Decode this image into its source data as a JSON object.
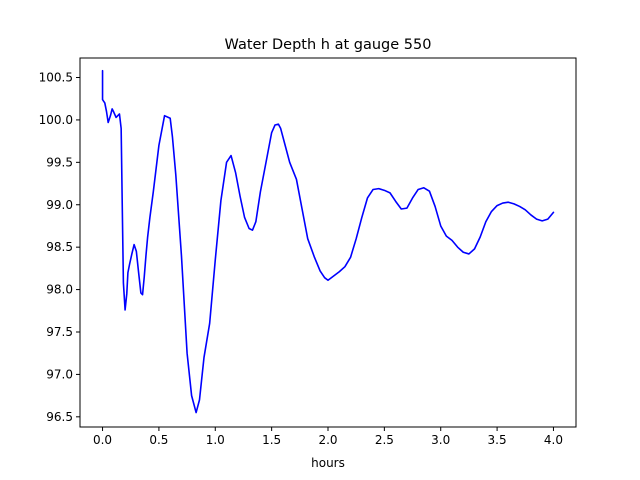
{
  "chart_data": {
    "type": "line",
    "title": "Water Depth h at gauge 550",
    "xlabel": "hours",
    "ylabel": "",
    "xlim": [
      -0.2,
      4.2
    ],
    "ylim": [
      96.38,
      100.73
    ],
    "grid": false,
    "x_ticks": [
      0.0,
      0.5,
      1.0,
      1.5,
      2.0,
      2.5,
      3.0,
      3.5,
      4.0
    ],
    "x_tick_labels": [
      "0.0",
      "0.5",
      "1.0",
      "1.5",
      "2.0",
      "2.5",
      "3.0",
      "3.5",
      "4.0"
    ],
    "y_ticks": [
      96.5,
      97.0,
      97.5,
      98.0,
      98.5,
      99.0,
      99.5,
      100.0,
      100.5
    ],
    "y_tick_labels": [
      "96.5",
      "97.0",
      "97.5",
      "98.0",
      "98.5",
      "99.0",
      "99.5",
      "100.0",
      "100.5"
    ],
    "series": [
      {
        "color": "#0000ff",
        "x": [
          0.0,
          0.0,
          0.01,
          0.02,
          0.035,
          0.05,
          0.07,
          0.085,
          0.1,
          0.12,
          0.135,
          0.15,
          0.165,
          0.175,
          0.185,
          0.2,
          0.215,
          0.225,
          0.24,
          0.26,
          0.28,
          0.3,
          0.32,
          0.34,
          0.355,
          0.37,
          0.385,
          0.4,
          0.42,
          0.45,
          0.5,
          0.55,
          0.6,
          0.62,
          0.65,
          0.7,
          0.75,
          0.79,
          0.83,
          0.86,
          0.9,
          0.95,
          1.0,
          1.05,
          1.1,
          1.14,
          1.18,
          1.22,
          1.26,
          1.3,
          1.33,
          1.36,
          1.4,
          1.45,
          1.5,
          1.53,
          1.56,
          1.58,
          1.62,
          1.66,
          1.72,
          1.77,
          1.82,
          1.88,
          1.93,
          1.97,
          2.0,
          2.05,
          2.1,
          2.15,
          2.2,
          2.25,
          2.3,
          2.35,
          2.4,
          2.45,
          2.5,
          2.55,
          2.6,
          2.65,
          2.7,
          2.75,
          2.8,
          2.85,
          2.9,
          2.95,
          3.0,
          3.05,
          3.1,
          3.15,
          3.2,
          3.25,
          3.3,
          3.35,
          3.4,
          3.45,
          3.5,
          3.55,
          3.6,
          3.65,
          3.7,
          3.75,
          3.8,
          3.85,
          3.9,
          3.95,
          4.0
        ],
        "y": [
          100.58,
          100.24,
          100.22,
          100.2,
          100.1,
          99.97,
          100.05,
          100.13,
          100.09,
          100.03,
          100.05,
          100.07,
          99.9,
          98.98,
          98.08,
          97.76,
          97.95,
          98.2,
          98.3,
          98.42,
          98.53,
          98.45,
          98.2,
          97.96,
          97.94,
          98.15,
          98.4,
          98.62,
          98.85,
          99.15,
          99.7,
          100.05,
          100.02,
          99.8,
          99.35,
          98.4,
          97.25,
          96.75,
          96.55,
          96.7,
          97.2,
          97.6,
          98.35,
          99.05,
          99.5,
          99.58,
          99.38,
          99.1,
          98.85,
          98.72,
          98.7,
          98.8,
          99.15,
          99.5,
          99.85,
          99.94,
          99.95,
          99.9,
          99.7,
          99.5,
          99.3,
          98.95,
          98.6,
          98.38,
          98.22,
          98.14,
          98.11,
          98.16,
          98.21,
          98.27,
          98.38,
          98.6,
          98.85,
          99.08,
          99.18,
          99.19,
          99.17,
          99.14,
          99.04,
          98.95,
          98.96,
          99.08,
          99.18,
          99.2,
          99.16,
          98.98,
          98.75,
          98.63,
          98.58,
          98.5,
          98.44,
          98.42,
          98.48,
          98.62,
          98.8,
          98.92,
          98.99,
          99.02,
          99.03,
          99.01,
          98.98,
          98.94,
          98.88,
          98.83,
          98.81,
          98.83,
          98.91
        ]
      }
    ]
  }
}
